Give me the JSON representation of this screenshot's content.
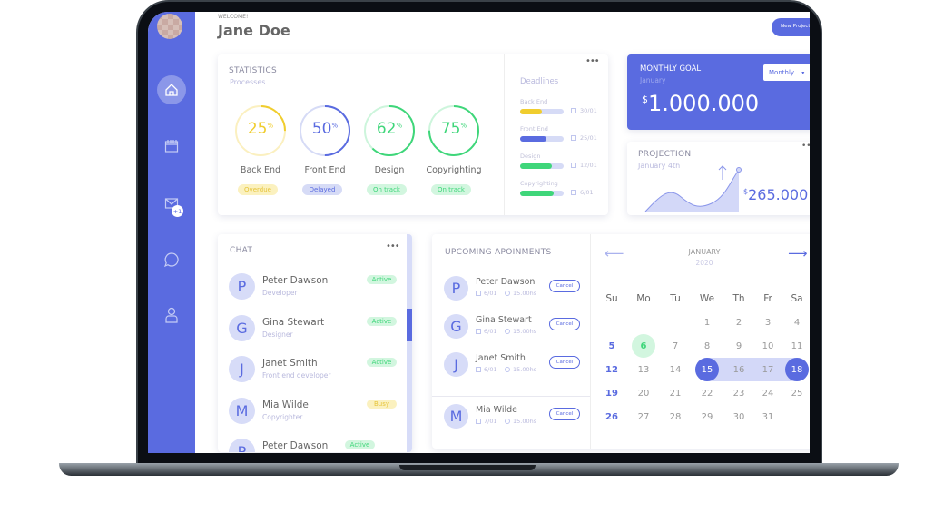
{
  "header": {
    "welcome": "WELCOME!",
    "user_name": "Jane Doe",
    "new_project_label": "New Project"
  },
  "sidebar": {
    "items": [
      {
        "icon": "home-icon",
        "active": true
      },
      {
        "icon": "calendar-icon"
      },
      {
        "icon": "mail-icon",
        "badge": "+1"
      },
      {
        "icon": "chat-bubble-icon"
      },
      {
        "icon": "user-icon"
      }
    ]
  },
  "statistics": {
    "title": "STATISTICS",
    "subtitle": "Processes",
    "items": [
      {
        "label": "Back End",
        "value": 25,
        "unit": "%",
        "status": "Overdue",
        "color": "#f0cd2e",
        "track": "#fbf0c0",
        "pill_bg": "#fbf1bf",
        "pill_fg": "#e6c43a"
      },
      {
        "label": "Front End",
        "value": 50,
        "unit": "%",
        "status": "Delayed",
        "color": "#5a6be0",
        "track": "#d6dbf6",
        "pill_bg": "#d6dbf6",
        "pill_fg": "#5a6be0"
      },
      {
        "label": "Design",
        "value": 62,
        "unit": "%",
        "status": "On track",
        "color": "#3fd67a",
        "track": "#cdf5dc",
        "pill_bg": "#d2f6df",
        "pill_fg": "#3fd67a"
      },
      {
        "label": "Copyrighting",
        "value": 75,
        "unit": "%",
        "status": "On track",
        "color": "#3fd67a",
        "track": "#cdf5dc",
        "pill_bg": "#d2f6df",
        "pill_fg": "#3fd67a"
      }
    ]
  },
  "deadlines": {
    "title": "Deadlines",
    "items": [
      {
        "label": "Back End",
        "progress": 50,
        "date": "30/01",
        "color": "#f0cd2e"
      },
      {
        "label": "Front End",
        "progress": 60,
        "date": "25/01",
        "color": "#5a6be0"
      },
      {
        "label": "Design",
        "progress": 72,
        "date": "12/01",
        "color": "#3fd67a"
      },
      {
        "label": "Copyrighting",
        "progress": 78,
        "date": "6/01",
        "color": "#3fd67a"
      }
    ]
  },
  "monthly_goal": {
    "title": "MONTHLY GOAL",
    "subtitle": "January",
    "currency": "$",
    "amount": "1.000.000",
    "period_select": "Monthly"
  },
  "projection": {
    "title": "PROJECTION",
    "subtitle": "January 4th",
    "currency": "$",
    "amount": "265.000"
  },
  "chat": {
    "title": "CHAT",
    "contacts": [
      {
        "initial": "P",
        "name": "Peter Dawson",
        "role": "Developer",
        "status": "Active"
      },
      {
        "initial": "G",
        "name": "Gina Stewart",
        "role": "Designer",
        "status": "Active"
      },
      {
        "initial": "J",
        "name": "Janet Smith",
        "role": "Front end developer",
        "status": "Active"
      },
      {
        "initial": "M",
        "name": "Mia Wilde",
        "role": "Copyrighter",
        "status": "Busy"
      },
      {
        "initial": "P",
        "name": "Peter Dawson",
        "role": "",
        "status": "Active"
      }
    ]
  },
  "appointments": {
    "title": "UPCOMING APOINMENTS",
    "cancel_label": "Cancel",
    "items": [
      {
        "initial": "P",
        "name": "Peter Dawson",
        "date": "6/01",
        "time": "15.00hs"
      },
      {
        "initial": "G",
        "name": "Gina Stewart",
        "date": "6/01",
        "time": "15.00hs"
      },
      {
        "initial": "J",
        "name": "Janet Smith",
        "date": "6/01",
        "time": "15.00hs"
      },
      {
        "initial": "M",
        "name": "Mia Wilde",
        "date": "7/01",
        "time": "15.00hs"
      }
    ]
  },
  "calendar": {
    "month": "JANUARY",
    "year": "2020",
    "weekdays": [
      "Su",
      "Mo",
      "Tu",
      "We",
      "Th",
      "Fr",
      "Sa"
    ],
    "weeks": [
      [
        "",
        "",
        "",
        "1",
        "2",
        "3",
        "4"
      ],
      [
        "5",
        "6",
        "7",
        "8",
        "9",
        "10",
        "11"
      ],
      [
        "12",
        "13",
        "14",
        "15",
        "16",
        "17",
        "18"
      ],
      [
        "19",
        "20",
        "21",
        "22",
        "23",
        "24",
        "25"
      ],
      [
        "26",
        "27",
        "28",
        "29",
        "30",
        "31",
        ""
      ]
    ],
    "today": "6",
    "range_start": "15",
    "range_end": "18",
    "accent": "#5a6be0"
  }
}
